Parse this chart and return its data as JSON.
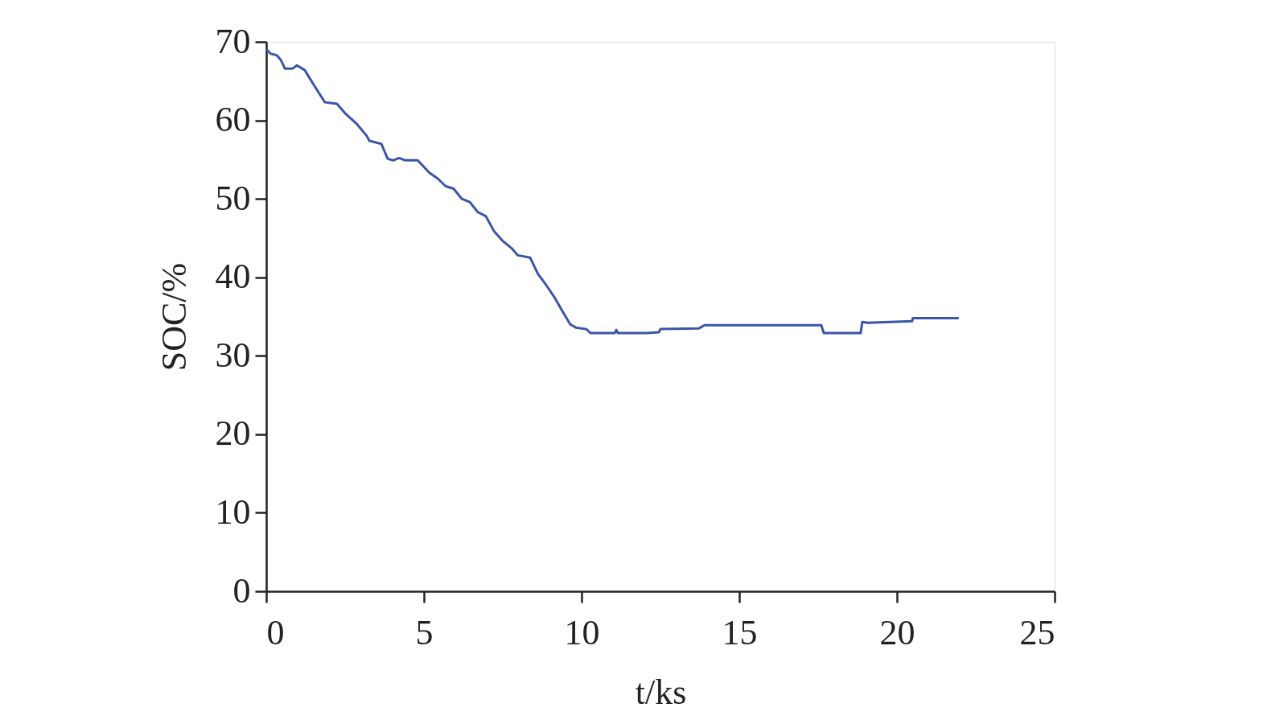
{
  "chart_data": {
    "type": "line",
    "xlabel": "t/ks",
    "ylabel": "SOC/%",
    "xlim": [
      0,
      25
    ],
    "xticks": [
      0,
      5,
      10,
      15,
      20,
      25
    ],
    "ylim": [
      0,
      70
    ],
    "yticks": [
      0,
      10,
      20,
      30,
      40,
      50,
      60,
      70
    ],
    "grid": false,
    "marker": "none",
    "line_style": "solid",
    "series": [
      {
        "color": "#3a55a8",
        "x": [
          0,
          0.13,
          0.33,
          0.46,
          0.59,
          0.84,
          0.97,
          1.22,
          1.48,
          1.73,
          1.86,
          2.24,
          2.5,
          2.88,
          3.19,
          3.27,
          3.65,
          3.85,
          4.03,
          4.21,
          4.41,
          4.8,
          5.18,
          5.43,
          5.69,
          5.94,
          6.2,
          6.45,
          6.71,
          6.96,
          7.22,
          7.48,
          7.78,
          7.98,
          8.37,
          8.62,
          8.88,
          9.13,
          9.39,
          9.64,
          9.82,
          10.15,
          10.28,
          11.05,
          11.1,
          11.15,
          12.07,
          12.45,
          12.5,
          13.72,
          13.9,
          17.6,
          17.68,
          18.85,
          18.9,
          19.08,
          20.48,
          20.5,
          21.96
        ],
        "values": [
          69.1,
          68.5,
          68.3,
          67.7,
          66.6,
          66.6,
          67.0,
          66.4,
          64.7,
          63.1,
          62.3,
          62.1,
          60.9,
          59.5,
          58.0,
          57.4,
          57.0,
          55.1,
          54.9,
          55.2,
          54.9,
          54.9,
          53.3,
          52.6,
          51.6,
          51.3,
          50.0,
          49.6,
          48.3,
          47.8,
          45.9,
          44.7,
          43.7,
          42.8,
          42.5,
          40.4,
          39.0,
          37.5,
          35.7,
          34.0,
          33.6,
          33.4,
          32.9,
          32.9,
          33.3,
          32.9,
          32.9,
          33.0,
          33.4,
          33.5,
          33.9,
          33.9,
          32.9,
          32.9,
          34.3,
          34.2,
          34.4,
          34.8,
          34.8
        ]
      }
    ]
  }
}
